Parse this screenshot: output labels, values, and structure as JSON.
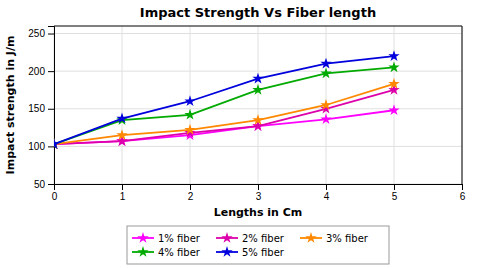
{
  "chart_data": {
    "type": "line",
    "title": "Impact Strength Vs Fiber length",
    "xlabel": "Lengths in Cm",
    "ylabel": "Impact strength in J/m",
    "x": [
      0,
      1,
      2,
      3,
      4,
      5
    ],
    "series": [
      {
        "name": "1% fiber",
        "color": "#ff00ff",
        "values": [
          103,
          107,
          115,
          127,
          136,
          148
        ]
      },
      {
        "name": "2% fiber",
        "color": "#dd00aa",
        "values": [
          103,
          107,
          118,
          127,
          150,
          175
        ]
      },
      {
        "name": "3% fiber",
        "color": "#ff8800",
        "values": [
          103,
          115,
          122,
          135,
          155,
          183
        ]
      },
      {
        "name": "4% fiber",
        "color": "#00aa00",
        "values": [
          103,
          135,
          142,
          175,
          197,
          205
        ]
      },
      {
        "name": "5% fiber",
        "color": "#0000dd",
        "values": [
          103,
          137,
          160,
          190,
          210,
          220
        ]
      }
    ],
    "xlim": [
      0,
      6
    ],
    "ylim": [
      50,
      260
    ],
    "xticks": [
      0,
      1,
      2,
      3,
      4,
      5,
      6
    ],
    "yticks": [
      50,
      100,
      150,
      200,
      250
    ],
    "grid": true,
    "marker": "star",
    "legend": "bottom"
  }
}
